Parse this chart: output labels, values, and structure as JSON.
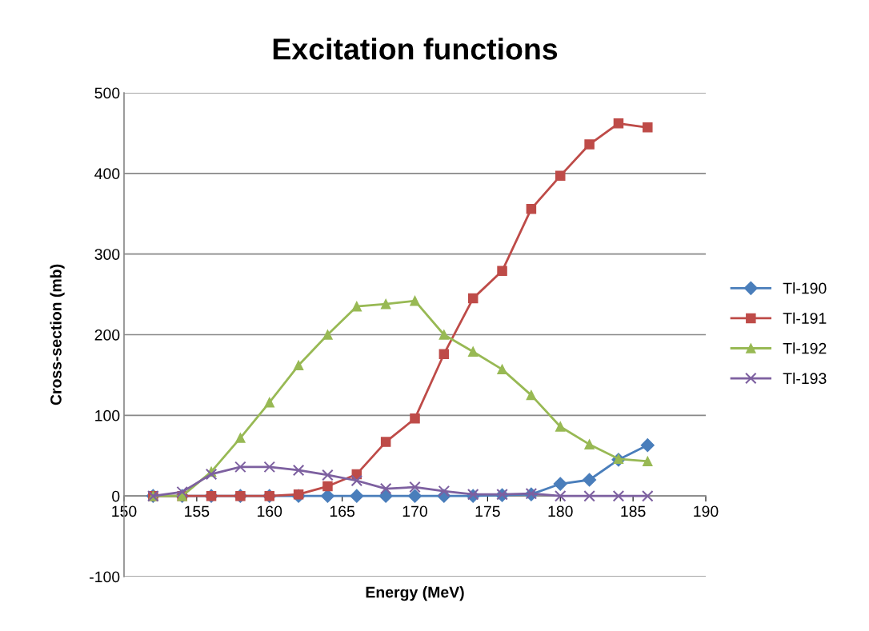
{
  "chart_data": {
    "type": "line",
    "title": "Excitation functions",
    "xlabel": "Energy (MeV)",
    "ylabel": "Cross-section (mb)",
    "x": [
      152,
      154,
      156,
      158,
      160,
      162,
      164,
      166,
      168,
      170,
      172,
      174,
      176,
      178,
      180,
      182,
      184,
      186
    ],
    "series": [
      {
        "name": "Tl-190",
        "color": "#4a7ebb",
        "marker": "diamond",
        "values": [
          0,
          0,
          0,
          0,
          0,
          0,
          0,
          0,
          0,
          0,
          0,
          0,
          1,
          2,
          15,
          20,
          45,
          63
        ]
      },
      {
        "name": "Tl-191",
        "color": "#be4b48",
        "marker": "square",
        "values": [
          0,
          0,
          0,
          0,
          0,
          2,
          12,
          27,
          67,
          96,
          176,
          245,
          279,
          356,
          397,
          436,
          462,
          457
        ]
      },
      {
        "name": "Tl-192",
        "color": "#98b954",
        "marker": "triangle",
        "values": [
          0,
          0,
          30,
          72,
          116,
          162,
          200,
          235,
          238,
          242,
          200,
          179,
          157,
          125,
          86,
          64,
          46,
          43
        ]
      },
      {
        "name": "Tl-193",
        "color": "#7d60a0",
        "marker": "cross",
        "values": [
          0,
          5,
          27,
          36,
          36,
          32,
          26,
          19,
          9,
          11,
          6,
          2,
          2,
          3,
          0,
          0,
          0,
          0
        ]
      }
    ],
    "xlim": [
      150,
      190
    ],
    "xticks": [
      150,
      155,
      160,
      165,
      170,
      175,
      180,
      185,
      190
    ],
    "ylim": [
      -100,
      500
    ],
    "yticks": [
      -100,
      0,
      100,
      200,
      300,
      400,
      500
    ],
    "grid": "y",
    "legend": "right",
    "line_style": "solid"
  }
}
